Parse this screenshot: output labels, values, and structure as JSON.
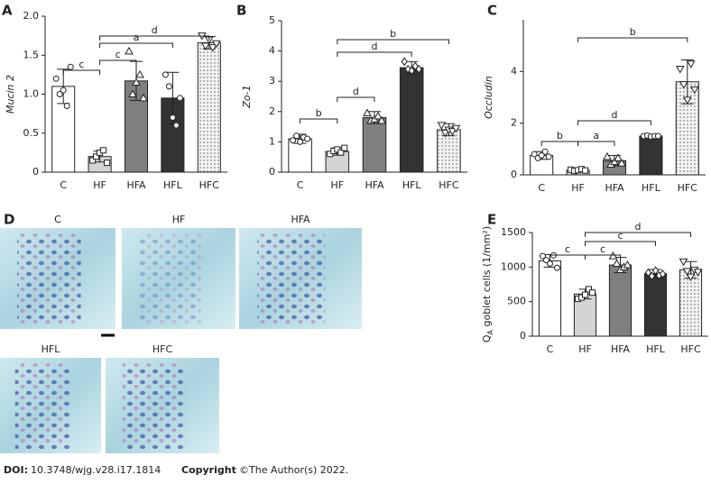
{
  "chart_data": [
    {
      "type": "bar",
      "panel": "A",
      "ylabel": "Mucin 2",
      "categories": [
        "C",
        "HF",
        "HFA",
        "HFL",
        "HFC"
      ],
      "values": [
        1.1,
        0.2,
        1.17,
        0.95,
        1.66
      ],
      "errors": [
        0.22,
        0.07,
        0.25,
        0.33,
        0.08
      ],
      "points": [
        [
          1.2,
          1.0,
          1.05,
          0.85,
          1.35
        ],
        [
          0.15,
          0.2,
          0.25,
          0.28,
          0.12
        ],
        [
          1.55,
          1.0,
          1.15,
          1.25,
          0.95
        ],
        [
          1.25,
          1.1,
          0.7,
          0.6,
          0.95
        ],
        [
          1.75,
          1.62,
          1.7,
          1.6,
          1.65
        ]
      ],
      "markers": [
        "circle",
        "square",
        "triangle",
        "circle",
        "triangle-down"
      ],
      "colors": [
        "#ffffff",
        "#d4d4d4",
        "#7f7f7f",
        "#333333",
        "#ececec"
      ],
      "ylim": [
        0,
        2
      ],
      "yticks": [
        0,
        0.5,
        {
          "value": 1,
          "label": "1.0"
        },
        1.5,
        {
          "value": 2,
          "label": "2.0"
        }
      ],
      "brackets": [
        {
          "from": "C",
          "to": "HF",
          "label": "c"
        },
        {
          "from": "HF",
          "to": "HFA",
          "label": "c"
        },
        {
          "from": "HF",
          "to": "HFL",
          "label": "a"
        },
        {
          "from": "HF",
          "to": "HFC",
          "label": "d"
        }
      ]
    },
    {
      "type": "bar",
      "panel": "B",
      "ylabel": "Zo-1",
      "categories": [
        "C",
        "HF",
        "HFA",
        "HFL",
        "HFC"
      ],
      "values": [
        1.1,
        0.68,
        1.8,
        3.45,
        1.4
      ],
      "errors": [
        0.15,
        0.12,
        0.2,
        0.2,
        0.2
      ],
      "points": [
        [
          1.05,
          1.2,
          1.0,
          1.15,
          1.1
        ],
        [
          0.6,
          0.7,
          0.75,
          0.65,
          0.8
        ],
        [
          1.95,
          1.7,
          1.75,
          1.85,
          1.7
        ],
        [
          3.65,
          3.4,
          3.35,
          3.5,
          3.4
        ],
        [
          1.55,
          1.3,
          1.4,
          1.35,
          1.45
        ]
      ],
      "markers": [
        "circle",
        "square",
        "triangle",
        "diamond",
        "triangle-down"
      ],
      "colors": [
        "#ffffff",
        "#d4d4d4",
        "#7f7f7f",
        "#333333",
        "#ececec"
      ],
      "ylim": [
        0,
        5
      ],
      "yticks": [
        0,
        1,
        2,
        3,
        4,
        5
      ],
      "brackets": [
        {
          "from": "C",
          "to": "HF",
          "label": "b"
        },
        {
          "from": "HF",
          "to": "HFA",
          "label": "d"
        },
        {
          "from": "HF",
          "to": "HFL",
          "label": "d"
        },
        {
          "from": "HF",
          "to": "HFC",
          "label": "b"
        }
      ]
    },
    {
      "type": "bar",
      "panel": "C",
      "ylabel": "Occludin",
      "categories": [
        "C",
        "HF",
        "HFA",
        "HFL",
        "HFC"
      ],
      "values": [
        0.75,
        0.18,
        0.55,
        1.5,
        3.6
      ],
      "errors": [
        0.15,
        0.05,
        0.2,
        0.05,
        0.85
      ],
      "points": [
        [
          0.8,
          0.65,
          0.75,
          0.9,
          0.7
        ],
        [
          0.2,
          0.15,
          0.18,
          0.22,
          0.17
        ],
        [
          0.7,
          0.4,
          0.5,
          0.65,
          0.45
        ],
        [
          1.5,
          1.52,
          1.48,
          1.5,
          1.5
        ],
        [
          4.1,
          3.5,
          2.9,
          4.3,
          3.3
        ]
      ],
      "markers": [
        "circle",
        "square",
        "triangle",
        "circle",
        "triangle-down"
      ],
      "colors": [
        "#ffffff",
        "#d4d4d4",
        "#7f7f7f",
        "#333333",
        "#ececec"
      ],
      "ylim": [
        0,
        6
      ],
      "yticks": [
        0,
        2,
        4
      ],
      "brackets": [
        {
          "from": "C",
          "to": "HF",
          "label": "b"
        },
        {
          "from": "HF",
          "to": "HFA",
          "label": "a"
        },
        {
          "from": "HF",
          "to": "HFL",
          "label": "d"
        },
        {
          "from": "HF",
          "to": "HFC",
          "label": "b"
        }
      ]
    },
    {
      "type": "bar",
      "panel": "E",
      "ylabel": [
        "Q",
        "A",
        " goblet cells (1/mm²)"
      ],
      "categories": [
        "C",
        "HF",
        "HFA",
        "HFL",
        "HFC"
      ],
      "values": [
        1090,
        610,
        1030,
        905,
        960
      ],
      "errors": [
        90,
        70,
        110,
        60,
        120
      ],
      "points": [
        [
          1160,
          1100,
          1050,
          1170,
          990
        ],
        [
          540,
          560,
          600,
          680,
          630
        ],
        [
          1160,
          1050,
          960,
          1000,
          1030
        ],
        [
          920,
          870,
          950,
          880,
          900
        ],
        [
          1080,
          940,
          860,
          960,
          930
        ]
      ],
      "markers": [
        "circle",
        "square",
        "triangle",
        "diamond",
        "triangle-down"
      ],
      "colors": [
        "#ffffff",
        "#d4d4d4",
        "#7f7f7f",
        "#333333",
        "#ececec"
      ],
      "ylim": [
        0,
        1500
      ],
      "yticks": [
        0,
        500,
        1000,
        1500
      ],
      "brackets": [
        {
          "from": "C",
          "to": "HF",
          "label": "c"
        },
        {
          "from": "HF",
          "to": "HFA",
          "label": "c"
        },
        {
          "from": "HF",
          "to": "HFL",
          "label": "c"
        },
        {
          "from": "HF",
          "to": "HFC",
          "label": "d"
        }
      ]
    }
  ],
  "histology": {
    "panel": "D",
    "images": [
      "C",
      "HF",
      "HFA",
      "HFL",
      "HFC"
    ]
  },
  "footer": {
    "doi_label": "DOI:",
    "doi": "10.3748/wjg.v28.i17.1814",
    "copyright_label": "Copyright",
    "copyright": "©The Author(s) 2022."
  }
}
